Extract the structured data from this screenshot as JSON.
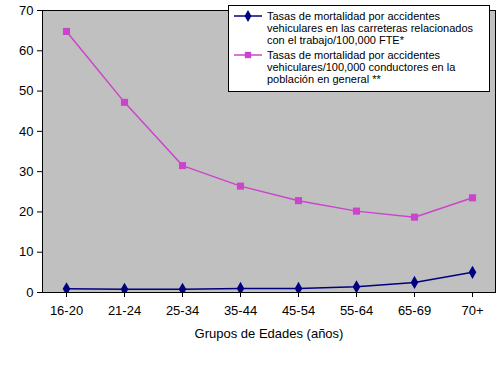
{
  "chart_data": {
    "type": "line",
    "x_label": "Grupos de Edades (años)",
    "categories": [
      "16-20",
      "21-24",
      "25-34",
      "35-44",
      "45-54",
      "55-64",
      "65-69",
      "70+"
    ],
    "series": [
      {
        "name": "Tasas de mortalidad por accidentes vehiculares en las carreteras relacionados con el trabajo/100,000 FTE*",
        "color": "#000080",
        "marker": "diamond",
        "values": [
          0.9,
          0.8,
          0.8,
          1.0,
          1.0,
          1.4,
          2.5,
          5.0
        ]
      },
      {
        "name": "Tasas de mortalidad por accidentes vehiculares/100,000 conductores en la población en general **",
        "color": "#cc44cc",
        "marker": "square",
        "values": [
          64.8,
          47.2,
          31.5,
          26.4,
          22.8,
          20.2,
          18.7,
          23.5
        ]
      }
    ],
    "ylim": [
      0,
      70
    ],
    "yticks": [
      0,
      10,
      20,
      30,
      40,
      50,
      60,
      70
    ],
    "grid": false,
    "legend": "top-right"
  }
}
